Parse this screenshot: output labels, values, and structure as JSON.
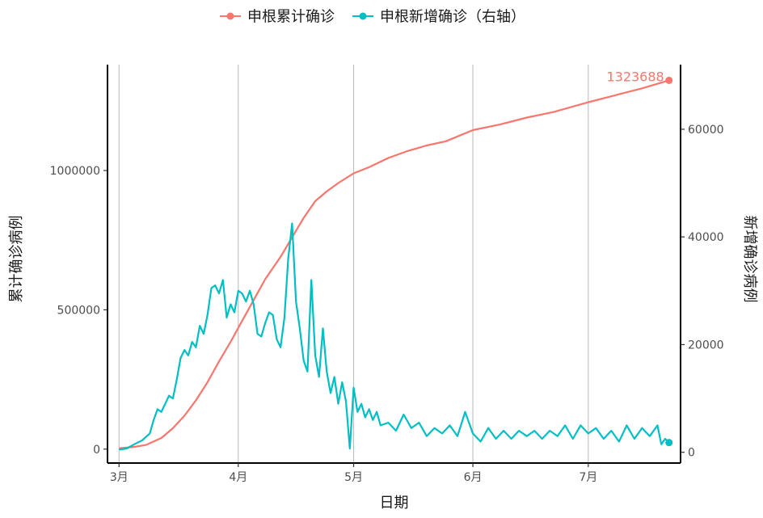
{
  "chart_data": {
    "type": "line",
    "title": "",
    "legend": {
      "placement": "top",
      "entries": [
        {
          "label": "申根累计确诊",
          "color": "#F8766D"
        },
        {
          "label": "申根新增确诊（右轴）",
          "color": "#00BFC4"
        }
      ]
    },
    "xlabel": "日期",
    "ylabel_left": "累计确诊病例",
    "ylabel_right": "新增确诊病例",
    "grid": "vertical-major",
    "x_axis": {
      "type": "date",
      "range": [
        "2020-02-27",
        "2020-07-25"
      ],
      "ticks": [
        {
          "date": "2020-03-01",
          "label": "3月"
        },
        {
          "date": "2020-04-01",
          "label": "4月"
        },
        {
          "date": "2020-05-01",
          "label": "5月"
        },
        {
          "date": "2020-06-01",
          "label": "6月"
        },
        {
          "date": "2020-07-01",
          "label": "7月"
        }
      ]
    },
    "y_left": {
      "range": [
        -50000,
        1380000
      ],
      "ticks": [
        {
          "value": 0,
          "label": "0"
        },
        {
          "value": 500000,
          "label": "500000"
        },
        {
          "value": 1000000,
          "label": "1000000"
        }
      ]
    },
    "y_right": {
      "range": [
        -2000,
        72000
      ],
      "ticks": [
        {
          "value": 0,
          "label": "0"
        },
        {
          "value": 20000,
          "label": "20000"
        },
        {
          "value": 40000,
          "label": "40000"
        },
        {
          "value": 60000,
          "label": "60000"
        }
      ]
    },
    "series": [
      {
        "name": "申根累计确诊",
        "axis": "left",
        "color": "#F8766D",
        "points": [
          [
            "2020-03-01",
            3000
          ],
          [
            "2020-03-05",
            8000
          ],
          [
            "2020-03-08",
            15000
          ],
          [
            "2020-03-12",
            40000
          ],
          [
            "2020-03-15",
            75000
          ],
          [
            "2020-03-18",
            120000
          ],
          [
            "2020-03-21",
            175000
          ],
          [
            "2020-03-24",
            240000
          ],
          [
            "2020-03-27",
            315000
          ],
          [
            "2020-03-30",
            385000
          ],
          [
            "2020-04-02",
            460000
          ],
          [
            "2020-04-05",
            535000
          ],
          [
            "2020-04-08",
            610000
          ],
          [
            "2020-04-12",
            690000
          ],
          [
            "2020-04-15",
            760000
          ],
          [
            "2020-04-18",
            830000
          ],
          [
            "2020-04-21",
            890000
          ],
          [
            "2020-04-24",
            925000
          ],
          [
            "2020-04-27",
            955000
          ],
          [
            "2020-05-01",
            990000
          ],
          [
            "2020-05-05",
            1012000
          ],
          [
            "2020-05-10",
            1045000
          ],
          [
            "2020-05-15",
            1070000
          ],
          [
            "2020-05-20",
            1090000
          ],
          [
            "2020-05-25",
            1105000
          ],
          [
            "2020-06-01",
            1145000
          ],
          [
            "2020-06-08",
            1165000
          ],
          [
            "2020-06-15",
            1190000
          ],
          [
            "2020-06-22",
            1210000
          ],
          [
            "2020-07-01",
            1245000
          ],
          [
            "2020-07-08",
            1270000
          ],
          [
            "2020-07-15",
            1295000
          ],
          [
            "2020-07-22",
            1323688
          ]
        ]
      },
      {
        "name": "申根新增确诊（右轴）",
        "axis": "right",
        "color": "#00BFC4",
        "points": [
          [
            "2020-03-01",
            500
          ],
          [
            "2020-03-03",
            700
          ],
          [
            "2020-03-05",
            1500
          ],
          [
            "2020-03-07",
            2200
          ],
          [
            "2020-03-09",
            3500
          ],
          [
            "2020-03-10",
            6000
          ],
          [
            "2020-03-11",
            8000
          ],
          [
            "2020-03-12",
            7500
          ],
          [
            "2020-03-13",
            9000
          ],
          [
            "2020-03-14",
            10500
          ],
          [
            "2020-03-15",
            10000
          ],
          [
            "2020-03-16",
            13500
          ],
          [
            "2020-03-17",
            17500
          ],
          [
            "2020-03-18",
            19000
          ],
          [
            "2020-03-19",
            18000
          ],
          [
            "2020-03-20",
            20500
          ],
          [
            "2020-03-21",
            19500
          ],
          [
            "2020-03-22",
            23500
          ],
          [
            "2020-03-23",
            22000
          ],
          [
            "2020-03-24",
            25500
          ],
          [
            "2020-03-25",
            30500
          ],
          [
            "2020-03-26",
            31000
          ],
          [
            "2020-03-27",
            29500
          ],
          [
            "2020-03-28",
            32000
          ],
          [
            "2020-03-29",
            25000
          ],
          [
            "2020-03-30",
            27500
          ],
          [
            "2020-03-31",
            26000
          ],
          [
            "2020-04-01",
            30000
          ],
          [
            "2020-04-02",
            29500
          ],
          [
            "2020-04-03",
            28000
          ],
          [
            "2020-04-04",
            30000
          ],
          [
            "2020-04-05",
            27500
          ],
          [
            "2020-04-06",
            22000
          ],
          [
            "2020-04-07",
            21500
          ],
          [
            "2020-04-08",
            24000
          ],
          [
            "2020-04-09",
            26000
          ],
          [
            "2020-04-10",
            25500
          ],
          [
            "2020-04-11",
            21000
          ],
          [
            "2020-04-12",
            19500
          ],
          [
            "2020-04-13",
            25000
          ],
          [
            "2020-04-14",
            36000
          ],
          [
            "2020-04-15",
            42500
          ],
          [
            "2020-04-16",
            28000
          ],
          [
            "2020-04-17",
            23000
          ],
          [
            "2020-04-18",
            17000
          ],
          [
            "2020-04-19",
            15000
          ],
          [
            "2020-04-20",
            32000
          ],
          [
            "2020-04-21",
            18000
          ],
          [
            "2020-04-22",
            14000
          ],
          [
            "2020-04-23",
            23000
          ],
          [
            "2020-04-24",
            15000
          ],
          [
            "2020-04-25",
            11000
          ],
          [
            "2020-04-26",
            14000
          ],
          [
            "2020-04-27",
            9000
          ],
          [
            "2020-04-28",
            13000
          ],
          [
            "2020-04-29",
            9500
          ],
          [
            "2020-04-30",
            700
          ],
          [
            "2020-05-01",
            12000
          ],
          [
            "2020-05-02",
            7500
          ],
          [
            "2020-05-03",
            9000
          ],
          [
            "2020-05-04",
            6500
          ],
          [
            "2020-05-05",
            8000
          ],
          [
            "2020-05-06",
            6000
          ],
          [
            "2020-05-07",
            7500
          ],
          [
            "2020-05-08",
            5000
          ],
          [
            "2020-05-10",
            5500
          ],
          [
            "2020-05-12",
            4000
          ],
          [
            "2020-05-14",
            7000
          ],
          [
            "2020-05-16",
            4500
          ],
          [
            "2020-05-18",
            5500
          ],
          [
            "2020-05-20",
            3000
          ],
          [
            "2020-05-22",
            4500
          ],
          [
            "2020-05-24",
            3500
          ],
          [
            "2020-05-26",
            5000
          ],
          [
            "2020-05-28",
            3000
          ],
          [
            "2020-05-30",
            7500
          ],
          [
            "2020-06-01",
            3500
          ],
          [
            "2020-06-03",
            2000
          ],
          [
            "2020-06-05",
            4500
          ],
          [
            "2020-06-07",
            2500
          ],
          [
            "2020-06-09",
            4000
          ],
          [
            "2020-06-11",
            2500
          ],
          [
            "2020-06-13",
            4000
          ],
          [
            "2020-06-15",
            3000
          ],
          [
            "2020-06-17",
            4000
          ],
          [
            "2020-06-19",
            2500
          ],
          [
            "2020-06-21",
            4000
          ],
          [
            "2020-06-23",
            3000
          ],
          [
            "2020-06-25",
            5000
          ],
          [
            "2020-06-27",
            2500
          ],
          [
            "2020-06-29",
            5000
          ],
          [
            "2020-07-01",
            3500
          ],
          [
            "2020-07-03",
            4500
          ],
          [
            "2020-07-05",
            2500
          ],
          [
            "2020-07-07",
            4000
          ],
          [
            "2020-07-09",
            2000
          ],
          [
            "2020-07-11",
            5000
          ],
          [
            "2020-07-13",
            2500
          ],
          [
            "2020-07-15",
            4500
          ],
          [
            "2020-07-17",
            3000
          ],
          [
            "2020-07-19",
            5000
          ],
          [
            "2020-07-20",
            1500
          ],
          [
            "2020-07-21",
            2500
          ],
          [
            "2020-07-22",
            1800
          ]
        ]
      }
    ],
    "annotations": [
      {
        "series": "申根累计确诊",
        "date": "2020-07-22",
        "value": 1323688,
        "label": "1323688",
        "color": "#F8766D"
      }
    ]
  }
}
